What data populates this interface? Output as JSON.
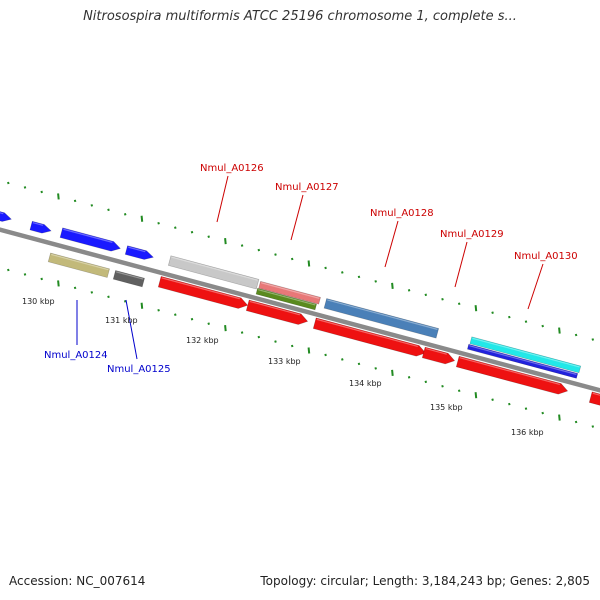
{
  "title": "Nitrosospira multiformis ATCC 25196 chromosome 1, complete s...",
  "footer": {
    "accession": "Accession: NC_007614",
    "stats": "Topology: circular; Length: 3,184,243 bp; Genes: 2,805"
  },
  "colors": {
    "backbone": "#8a8a8a",
    "tick_green": "#228b22",
    "label_red": "#cc0000",
    "label_blue": "#0000cc"
  },
  "scale_labels": [
    "130 kbp",
    "131 kbp",
    "132 kbp",
    "133 kbp",
    "134 kbp",
    "135 kbp",
    "136 kbp"
  ],
  "gene_labels": [
    {
      "name": "Nmul_A0124",
      "color": "#0000cc"
    },
    {
      "name": "Nmul_A0125",
      "color": "#0000cc"
    },
    {
      "name": "Nmul_A0126",
      "color": "#cc0000"
    },
    {
      "name": "Nmul_A0127",
      "color": "#cc0000"
    },
    {
      "name": "Nmul_A0128",
      "color": "#cc0000"
    },
    {
      "name": "Nmul_A0129",
      "color": "#cc0000"
    },
    {
      "name": "Nmul_A0130",
      "color": "#cc0000"
    }
  ],
  "features": [
    {
      "kind": "arrow",
      "color": "#1a1aff"
    },
    {
      "kind": "arrow",
      "color": "#1a1aff"
    },
    {
      "kind": "arrow",
      "color": "#1a1aff"
    },
    {
      "kind": "arrow",
      "color": "#1a1aff"
    },
    {
      "kind": "block",
      "color": "#c2b97a"
    },
    {
      "kind": "block",
      "color": "#606060"
    },
    {
      "kind": "block",
      "color": "#c8c8c8"
    },
    {
      "kind": "block",
      "color": "#e87878"
    },
    {
      "kind": "block",
      "color": "#5a8a1e"
    },
    {
      "kind": "block",
      "color": "#4a80b8"
    },
    {
      "kind": "block",
      "color": "#22e8e8"
    },
    {
      "kind": "block",
      "color": "#2222dd"
    },
    {
      "kind": "arrow",
      "color": "#ee1111"
    },
    {
      "kind": "arrow",
      "color": "#ee1111"
    },
    {
      "kind": "arrow",
      "color": "#ee1111"
    },
    {
      "kind": "arrow",
      "color": "#ee1111"
    },
    {
      "kind": "arrow",
      "color": "#ee1111"
    },
    {
      "kind": "arrow",
      "color": "#ee1111"
    }
  ]
}
